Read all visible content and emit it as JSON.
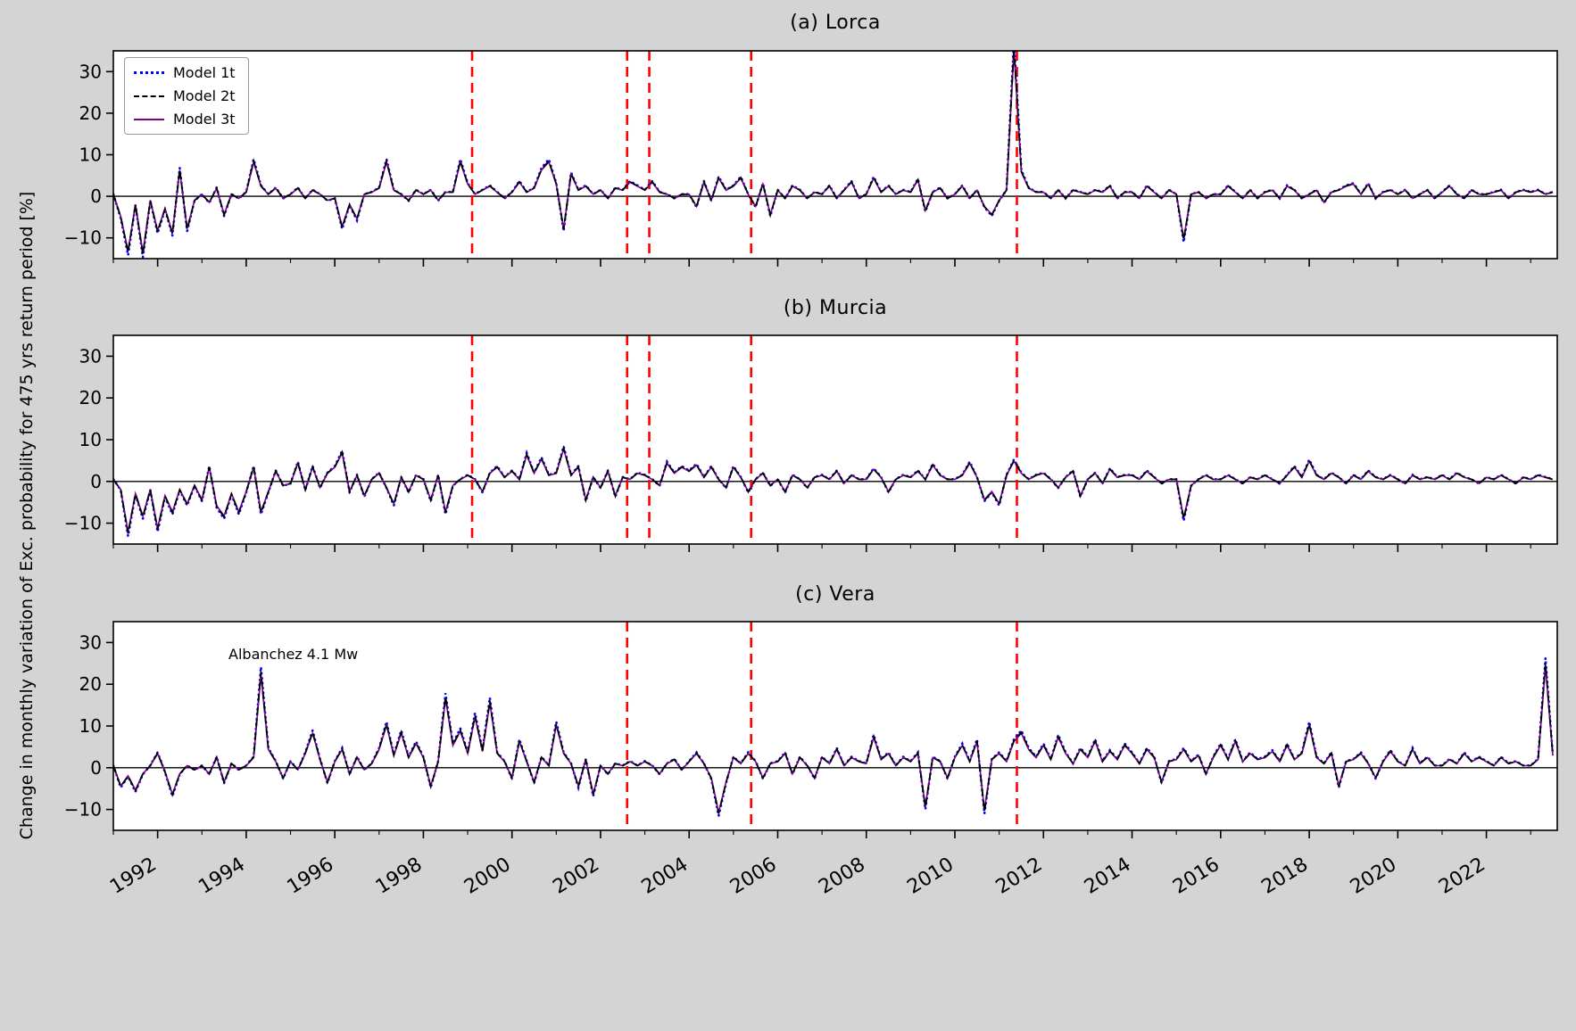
{
  "figure": {
    "ylabel": "Change in monthly variation of Exc. probability for 475 yrs return period [%]",
    "background": "#d4d4d4",
    "event_line_color": "#ff0000"
  },
  "chart_data": [
    {
      "panel": "a",
      "type": "line",
      "title": "(a)  Lorca",
      "x_start": 1991.0,
      "x_step": 0.166667,
      "xlim": [
        1991.0,
        2023.6
      ],
      "ylim": [
        -15,
        35
      ],
      "yticks": [
        -10,
        0,
        10,
        20,
        30
      ],
      "xticks_major": [
        1992,
        1994,
        1996,
        1998,
        2000,
        2002,
        2004,
        2006,
        2008,
        2010,
        2012,
        2014,
        2016,
        2018,
        2020,
        2022
      ],
      "xticks_minor_every": 1,
      "event_lines": [
        1999.1,
        2002.6,
        2003.1,
        2005.4,
        2011.4
      ],
      "series": [
        {
          "name": "Model 1t",
          "color": "#0000ff",
          "style": "dotted",
          "scale": 1.05
        },
        {
          "name": "Model 2t",
          "color": "#000000",
          "style": "dashed",
          "scale": 1.0
        },
        {
          "name": "Model 3t",
          "color": "#800080",
          "style": "solid",
          "scale": 0.97
        }
      ],
      "values": [
        0.5,
        -5,
        -13.5,
        -2,
        -14,
        -1,
        -8.5,
        -3,
        -9,
        6.5,
        -8,
        -1,
        0.5,
        -1.5,
        2,
        -4.5,
        0.5,
        -0.5,
        1,
        8.5,
        2.5,
        0.5,
        2,
        -0.5,
        0.5,
        2,
        -0.5,
        1.5,
        0.5,
        -1,
        -0.5,
        -7.5,
        -2,
        -5.5,
        0.5,
        1,
        2,
        8.5,
        1.5,
        0.5,
        -1,
        1.5,
        0.5,
        1.5,
        -1,
        1,
        1,
        8.5,
        3,
        0.5,
        1.5,
        2.5,
        1,
        -0.5,
        1,
        3.5,
        1,
        2,
        6.5,
        8.5,
        3,
        -8,
        5.5,
        1.5,
        2.5,
        0.5,
        1.5,
        -0.5,
        2,
        1.5,
        3.5,
        2.5,
        1.5,
        3.5,
        1,
        0.5,
        -0.5,
        0.5,
        0.5,
        -2.5,
        3.5,
        -1,
        4.5,
        1.5,
        2.5,
        4.5,
        0.5,
        -2.5,
        3,
        -4.5,
        1.5,
        -0.5,
        2.5,
        1.5,
        -0.5,
        1,
        0.5,
        2.5,
        -0.5,
        1.5,
        3.5,
        -0.5,
        0.5,
        4.5,
        1,
        2.5,
        0.5,
        1.5,
        1,
        4,
        -3.5,
        1,
        2,
        -0.5,
        0.5,
        2.5,
        -0.5,
        1.5,
        -2.5,
        -4.5,
        -1,
        1.5,
        36,
        6,
        2,
        1,
        1,
        -0.5,
        1.5,
        -0.5,
        1.5,
        1,
        0.5,
        1.5,
        1,
        2.5,
        -0.5,
        1,
        1,
        -0.5,
        2.5,
        1,
        -0.5,
        1.5,
        0.5,
        -10.5,
        0.5,
        1,
        -0.5,
        0.5,
        0.5,
        2.5,
        1,
        -0.5,
        1.5,
        -0.5,
        1,
        1.5,
        -0.5,
        2.5,
        1.5,
        -0.5,
        0.5,
        1.5,
        -1.5,
        1,
        1.5,
        2.5,
        3,
        0.5,
        3,
        -0.5,
        1,
        1.5,
        0.5,
        1.5,
        -0.5,
        0.5,
        1.5,
        -0.5,
        1,
        2.5,
        0.5,
        -0.5,
        1.5,
        0.5,
        0.5,
        1,
        1.5,
        -0.5,
        1,
        1.5,
        1,
        1.5,
        0.5,
        1
      ]
    },
    {
      "panel": "b",
      "type": "line",
      "title": "(b)  Murcia",
      "x_start": 1991.0,
      "x_step": 0.166667,
      "xlim": [
        1991.0,
        2023.6
      ],
      "ylim": [
        -15,
        35
      ],
      "yticks": [
        -10,
        0,
        10,
        20,
        30
      ],
      "xticks_major": [
        1992,
        1994,
        1996,
        1998,
        2000,
        2002,
        2004,
        2006,
        2008,
        2010,
        2012,
        2014,
        2016,
        2018,
        2020,
        2022
      ],
      "xticks_minor_every": 1,
      "event_lines": [
        1999.1,
        2002.6,
        2003.1,
        2005.4,
        2011.4
      ],
      "series": [
        {
          "name": "Model 1t",
          "color": "#0000ff",
          "style": "dotted",
          "scale": 1.05
        },
        {
          "name": "Model 2t",
          "color": "#000000",
          "style": "dashed",
          "scale": 1.0
        },
        {
          "name": "Model 3t",
          "color": "#800080",
          "style": "solid",
          "scale": 0.97
        }
      ],
      "values": [
        0.5,
        -2,
        -12.5,
        -3,
        -8.5,
        -2,
        -11.5,
        -3.5,
        -7.5,
        -2,
        -5.5,
        -1,
        -4.5,
        3.5,
        -6,
        -8.5,
        -3,
        -7.5,
        -2.5,
        3.5,
        -7.5,
        -2.5,
        2.5,
        -1,
        -0.5,
        4.5,
        -2,
        3.5,
        -1.5,
        2,
        3.5,
        7,
        -2.5,
        1.5,
        -3.5,
        0.5,
        2,
        -1.5,
        -5.5,
        1,
        -2.5,
        1.5,
        0.5,
        -4.5,
        1.5,
        -7.5,
        -1,
        0.5,
        1.5,
        0.5,
        -2.5,
        2,
        3.5,
        1,
        2.5,
        0.5,
        6.5,
        2,
        5.5,
        1.5,
        2,
        8,
        1.5,
        3.5,
        -4.5,
        1,
        -1.5,
        2.5,
        -3.5,
        1,
        0.5,
        2,
        1.5,
        0.5,
        -1,
        4.5,
        2,
        3.5,
        2.5,
        4,
        1,
        3.5,
        0.5,
        -1.5,
        3.5,
        1,
        -2.5,
        0.5,
        2,
        -1,
        0.5,
        -2.5,
        1.5,
        0.5,
        -1.5,
        1,
        1.5,
        0.5,
        2.5,
        -0.5,
        1.5,
        0.5,
        0.5,
        3,
        1,
        -2.5,
        0.5,
        1.5,
        1,
        2.5,
        0.5,
        4,
        1.5,
        0.5,
        0.5,
        1.5,
        4.5,
        1,
        -4.5,
        -2.5,
        -5.5,
        1.5,
        5,
        2,
        0.5,
        1.5,
        2,
        0.5,
        -1.5,
        1,
        2.5,
        -3.5,
        0.5,
        2,
        -0.5,
        3,
        1,
        1.5,
        1.5,
        0.5,
        2.5,
        1,
        -0.5,
        0.5,
        0.5,
        -9,
        -1,
        0.5,
        1.5,
        0.5,
        0.5,
        1.5,
        0.5,
        -0.5,
        1,
        0.5,
        1.5,
        0.5,
        -0.5,
        1.5,
        3.5,
        1,
        5,
        1.5,
        0.5,
        2,
        1,
        -0.5,
        1.5,
        0.5,
        2.5,
        1,
        0.5,
        1.5,
        0.5,
        -0.5,
        1.5,
        0.5,
        1,
        0.5,
        1.5,
        0.5,
        2,
        1,
        0.5,
        -0.5,
        1,
        0.5,
        1.5,
        0.5,
        -0.5,
        1,
        0.5,
        1.5,
        1,
        0.5
      ]
    },
    {
      "panel": "c",
      "type": "line",
      "title": "(c)   Vera",
      "x_start": 1991.0,
      "x_step": 0.166667,
      "xlim": [
        1991.0,
        2023.6
      ],
      "ylim": [
        -15,
        35
      ],
      "yticks": [
        -10,
        0,
        10,
        20,
        30
      ],
      "xticks_major": [
        1992,
        1994,
        1996,
        1998,
        2000,
        2002,
        2004,
        2006,
        2008,
        2010,
        2012,
        2014,
        2016,
        2018,
        2020,
        2022
      ],
      "xticks_minor_every": 1,
      "event_lines": [
        2002.6,
        2005.4,
        2011.4
      ],
      "annotation": {
        "text": "Albanchez 4.1 Mw",
        "x": 1993.6,
        "y": 27
      },
      "series": [
        {
          "name": "Model 1t",
          "color": "#0000ff",
          "style": "dotted",
          "scale": 1.05
        },
        {
          "name": "Model 2t",
          "color": "#000000",
          "style": "dashed",
          "scale": 1.0
        },
        {
          "name": "Model 3t",
          "color": "#800080",
          "style": "solid",
          "scale": 0.97
        }
      ],
      "values": [
        0.5,
        -4.5,
        -2,
        -5.5,
        -1.5,
        0.5,
        3.5,
        -1,
        -6.5,
        -1.5,
        0.5,
        -0.5,
        0.5,
        -1.5,
        2.5,
        -3.5,
        1,
        -0.5,
        0.5,
        2.5,
        23,
        4.5,
        1.5,
        -2.5,
        1.5,
        -0.5,
        3.5,
        8.5,
        2,
        -3.5,
        1.5,
        4.5,
        -1.5,
        2.5,
        -0.5,
        1,
        4.5,
        10.5,
        3,
        8.5,
        2.5,
        6,
        2.5,
        -4.5,
        1.5,
        17,
        5.5,
        9,
        3.5,
        12.5,
        4,
        16,
        3.5,
        1.5,
        -2.5,
        6.5,
        1.5,
        -3.5,
        2.5,
        0.5,
        10.5,
        3.5,
        1,
        -4.5,
        2,
        -6.5,
        0.5,
        -1.5,
        1,
        0.5,
        1.5,
        0.5,
        1.5,
        0.5,
        -1.5,
        1,
        2,
        -0.5,
        1.5,
        3.5,
        1,
        -2.5,
        -11,
        -3.5,
        2.5,
        1,
        3.5,
        1.5,
        -2.5,
        1,
        1.5,
        3.5,
        -1.5,
        2.5,
        0.5,
        -2.5,
        2.5,
        1,
        4.5,
        0.5,
        2.5,
        1.5,
        1,
        7.5,
        2,
        3.5,
        0.5,
        2.5,
        1.5,
        3.5,
        -9.5,
        2.5,
        1.5,
        -2.5,
        2.5,
        5.5,
        1.5,
        6.5,
        -10.5,
        2,
        3.5,
        1.5,
        6.5,
        8.5,
        4.5,
        2.5,
        5.5,
        2,
        7.5,
        3.5,
        1,
        4.5,
        2.5,
        6.5,
        1.5,
        4,
        2,
        5.5,
        3.5,
        1,
        4.5,
        2.5,
        -3.5,
        1.5,
        2,
        4.5,
        1.5,
        3,
        -1.5,
        2.5,
        5.5,
        2,
        6.5,
        1.5,
        3.5,
        2,
        2.5,
        4,
        1.5,
        5.5,
        2,
        3.5,
        10.5,
        2.5,
        1,
        3.5,
        -4.5,
        1.5,
        2,
        3.5,
        1,
        -2.5,
        1.5,
        4,
        1.5,
        0.5,
        4.5,
        1,
        2.5,
        0.5,
        0.5,
        2,
        1,
        3.5,
        1.5,
        2.5,
        1.5,
        0.5,
        2.5,
        1,
        1.5,
        0.5,
        0.5,
        2,
        25,
        3
      ]
    }
  ]
}
